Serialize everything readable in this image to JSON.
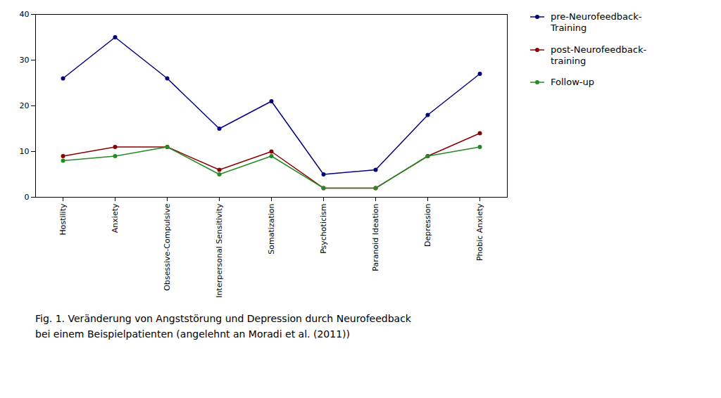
{
  "chart_data": {
    "type": "line",
    "categories": [
      "Hostility",
      "Anxiety",
      "Obsessive-Compulsive",
      "Interpersonal Sensitivity",
      "Somatization",
      "Psychoticism",
      "Paranoid Ideation",
      "Depression",
      "Phobic Anxiety"
    ],
    "series": [
      {
        "name": "pre-Neurofeedback-\nTraining",
        "color": "#000080",
        "values": [
          26,
          35,
          26,
          15,
          21,
          5,
          6,
          18,
          27
        ]
      },
      {
        "name": "post-Neurofeedback-\ntraining",
        "color": "#8B0000",
        "values": [
          9,
          11,
          11,
          6,
          10,
          2,
          2,
          9,
          14
        ]
      },
      {
        "name": "Follow-up",
        "color": "#228B22",
        "values": [
          8,
          9,
          11,
          5,
          9,
          2,
          2,
          9,
          11
        ]
      }
    ],
    "ylim": [
      0,
      40
    ],
    "yticks": [
      0,
      10,
      20,
      30,
      40
    ],
    "grid": false,
    "legend": "right",
    "marker": "circle",
    "line_style": "solid",
    "caption": "Fig. 1. Veränderung von Angststörung und Depression durch Neurofeedback\nbei einem Beispielpatienten (angelehnt an Moradi et al. (2011))"
  }
}
